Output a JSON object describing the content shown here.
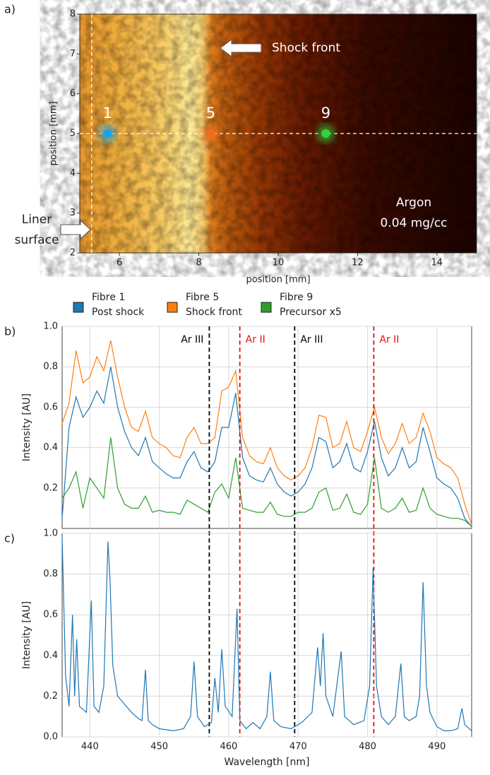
{
  "chart_data": [
    {
      "type": "image",
      "panel_label": "a)",
      "xlabel": "position [mm]",
      "ylabel": "position [mm]",
      "xlim": [
        5,
        15
      ],
      "ylim": [
        2,
        8
      ],
      "xticks": [
        6,
        8,
        10,
        12,
        14
      ],
      "yticks": [
        2,
        3,
        4,
        5,
        6,
        7,
        8
      ],
      "points": [
        {
          "label": "1",
          "x": 5.7,
          "y": 5,
          "color": "#1ea0e6"
        },
        {
          "label": "5",
          "x": 8.3,
          "y": 5,
          "color": "#f26a1b"
        },
        {
          "label": "9",
          "x": 11.2,
          "y": 5,
          "color": "#35d23f"
        }
      ],
      "guide_x": 5.3,
      "guide_y": 5,
      "shock_label": "Shock front",
      "liner_label": [
        "Liner",
        "surface"
      ],
      "gas_label": [
        "Argon",
        "0.04 mg/cc"
      ]
    },
    {
      "type": "line",
      "panel_label": "b)",
      "ylabel": "Intensity [AU]",
      "grid": true,
      "xlim": [
        436,
        495
      ],
      "ylim": [
        0,
        1
      ],
      "xticks": [
        440,
        450,
        460,
        470,
        480,
        490
      ],
      "yticks": [
        0.2,
        0.4,
        0.6,
        0.8,
        {
          "value": 1,
          "label": "1.0"
        }
      ],
      "markers": [
        {
          "x": 457.2,
          "label": "Ar III",
          "color": "#000000"
        },
        {
          "x": 461.6,
          "label": "Ar II",
          "color": "#e01010"
        },
        {
          "x": 469.5,
          "label": "Ar III",
          "color": "#000000"
        },
        {
          "x": 480.9,
          "label": "Ar II",
          "color": "#e01010"
        }
      ],
      "x": [
        436,
        437,
        438,
        439,
        440,
        441,
        442,
        443,
        444,
        445,
        446,
        447,
        448,
        449,
        450,
        451,
        452,
        453,
        454,
        455,
        456,
        457,
        458,
        459,
        460,
        461,
        462,
        463,
        464,
        465,
        466,
        467,
        468,
        469,
        470,
        471,
        472,
        473,
        474,
        475,
        476,
        477,
        478,
        479,
        480,
        481,
        482,
        483,
        484,
        485,
        486,
        487,
        488,
        489,
        490,
        491,
        492,
        493,
        494,
        495
      ],
      "series": [
        {
          "name": "Fibre 1",
          "subtitle": "Post shock",
          "color": "#1f77b4",
          "values": [
            0.05,
            0.5,
            0.65,
            0.55,
            0.6,
            0.68,
            0.62,
            0.8,
            0.6,
            0.48,
            0.4,
            0.36,
            0.45,
            0.33,
            0.3,
            0.27,
            0.25,
            0.25,
            0.33,
            0.38,
            0.3,
            0.28,
            0.33,
            0.5,
            0.5,
            0.67,
            0.35,
            0.26,
            0.24,
            0.23,
            0.3,
            0.22,
            0.18,
            0.16,
            0.18,
            0.22,
            0.3,
            0.45,
            0.43,
            0.3,
            0.33,
            0.42,
            0.3,
            0.28,
            0.38,
            0.53,
            0.35,
            0.26,
            0.3,
            0.4,
            0.3,
            0.33,
            0.5,
            0.38,
            0.25,
            0.22,
            0.2,
            0.15,
            0.05,
            0.01
          ]
        },
        {
          "name": "Fibre 5",
          "subtitle": "Shock front",
          "color": "#ff7f0e",
          "values": [
            0.52,
            0.62,
            0.88,
            0.72,
            0.75,
            0.85,
            0.78,
            0.93,
            0.75,
            0.6,
            0.5,
            0.48,
            0.58,
            0.45,
            0.42,
            0.4,
            0.36,
            0.35,
            0.45,
            0.5,
            0.42,
            0.42,
            0.45,
            0.68,
            0.7,
            0.78,
            0.45,
            0.36,
            0.33,
            0.32,
            0.4,
            0.3,
            0.26,
            0.24,
            0.26,
            0.3,
            0.4,
            0.56,
            0.55,
            0.4,
            0.42,
            0.53,
            0.4,
            0.38,
            0.48,
            0.6,
            0.45,
            0.37,
            0.42,
            0.52,
            0.42,
            0.45,
            0.57,
            0.48,
            0.35,
            0.32,
            0.3,
            0.25,
            0.12,
            0.02
          ]
        },
        {
          "name": "Fibre 9",
          "subtitle": "Precursor x5",
          "color": "#2ca02c",
          "values": [
            0.15,
            0.2,
            0.28,
            0.1,
            0.25,
            0.2,
            0.15,
            0.45,
            0.2,
            0.12,
            0.1,
            0.1,
            0.16,
            0.08,
            0.09,
            0.08,
            0.08,
            0.07,
            0.14,
            0.12,
            0.1,
            0.08,
            0.18,
            0.22,
            0.15,
            0.35,
            0.1,
            0.09,
            0.08,
            0.08,
            0.13,
            0.07,
            0.06,
            0.06,
            0.08,
            0.08,
            0.1,
            0.18,
            0.2,
            0.09,
            0.1,
            0.17,
            0.08,
            0.07,
            0.12,
            0.35,
            0.1,
            0.08,
            0.1,
            0.15,
            0.08,
            0.09,
            0.2,
            0.1,
            0.07,
            0.06,
            0.05,
            0.05,
            0.04,
            0.01
          ]
        }
      ]
    },
    {
      "type": "line",
      "panel_label": "c)",
      "xlabel": "Wavelength [nm]",
      "ylabel": "Intensity [AU]",
      "grid": true,
      "color": "#1f77b4",
      "xlim": [
        436,
        495
      ],
      "ylim": [
        0,
        1
      ],
      "xticks": [
        440,
        450,
        460,
        470,
        480,
        490
      ],
      "yticks": [
        {
          "value": 0,
          "label": "0.0"
        },
        0.2,
        0.4,
        0.6,
        0.8,
        {
          "value": 1,
          "label": "1.0"
        }
      ],
      "x": [
        436,
        436.5,
        437,
        437.5,
        437.8,
        438.1,
        438.5,
        439.5,
        440.2,
        440.6,
        441.3,
        442,
        442.6,
        442.9,
        443.3,
        444,
        445,
        446,
        447,
        447.5,
        448,
        448.4,
        449,
        450,
        452,
        453.5,
        454.5,
        455,
        455.5,
        456.5,
        457.5,
        458,
        458.5,
        459,
        459.5,
        460.5,
        461.2,
        461.6,
        462.5,
        463.5,
        464.5,
        465.5,
        466,
        466.5,
        467.5,
        469,
        470.5,
        472,
        472.8,
        473.2,
        473.6,
        474,
        475,
        476.2,
        476.7,
        478,
        479.5,
        480.3,
        480.8,
        481.3,
        482,
        483,
        484,
        484.8,
        485.3,
        486,
        487,
        487.5,
        488,
        488.5,
        489,
        490,
        491,
        492,
        493,
        493.6,
        494,
        495
      ],
      "values": [
        0.98,
        0.3,
        0.15,
        0.6,
        0.2,
        0.48,
        0.15,
        0.12,
        0.67,
        0.15,
        0.12,
        0.25,
        0.96,
        0.77,
        0.35,
        0.2,
        0.16,
        0.12,
        0.09,
        0.08,
        0.33,
        0.08,
        0.06,
        0.04,
        0.03,
        0.04,
        0.1,
        0.37,
        0.1,
        0.05,
        0.07,
        0.29,
        0.12,
        0.43,
        0.15,
        0.1,
        0.63,
        0.08,
        0.04,
        0.07,
        0.04,
        0.1,
        0.32,
        0.08,
        0.05,
        0.04,
        0.07,
        0.12,
        0.44,
        0.25,
        0.51,
        0.2,
        0.1,
        0.42,
        0.1,
        0.06,
        0.08,
        0.25,
        0.83,
        0.25,
        0.1,
        0.06,
        0.1,
        0.36,
        0.1,
        0.08,
        0.1,
        0.2,
        0.76,
        0.25,
        0.12,
        0.05,
        0.03,
        0.03,
        0.04,
        0.14,
        0.06,
        0.03
      ]
    }
  ]
}
